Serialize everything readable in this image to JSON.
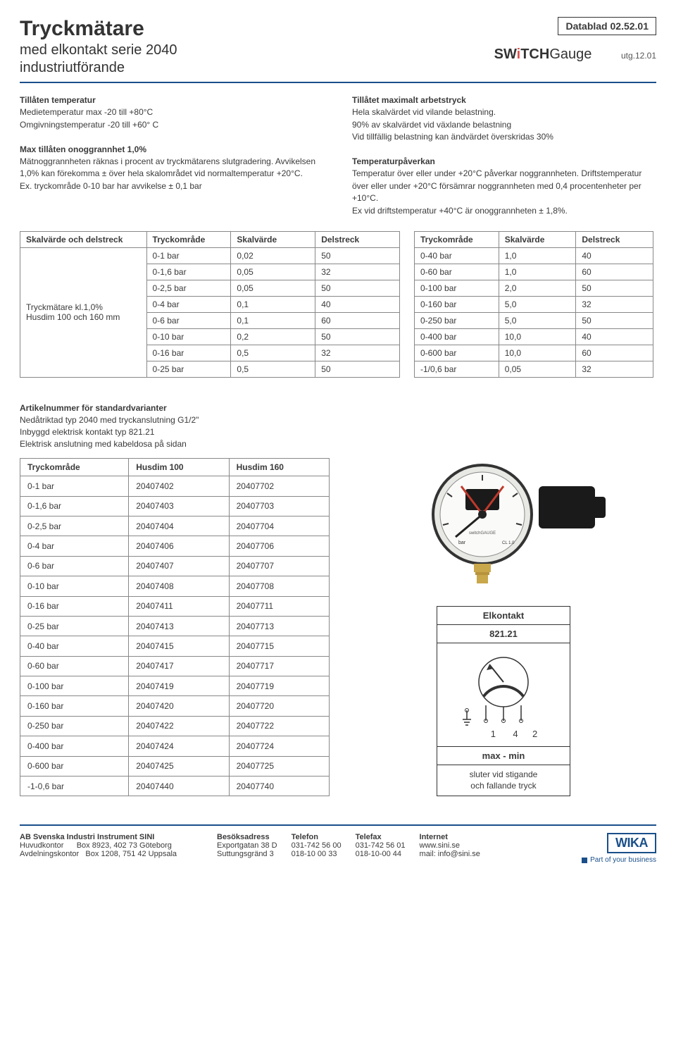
{
  "header": {
    "title": "Tryckmätare",
    "subtitle1": "med elkontakt  serie 2040",
    "subtitle2": "industriutförande",
    "datablad": "Datablad 02.52.01",
    "brand_prefix": "SW",
    "brand_i": "i",
    "brand_mid": "TCH",
    "brand_suffix": "Gauge",
    "utg": "utg.12.01"
  },
  "text_left": {
    "h1": "Tillåten temperatur",
    "p1": "Medietemperatur  max -20 till +80°C",
    "p2": "Omgivningstemperatur  -20 till +60° C",
    "h2": "Max tillåten onoggrannhet 1,0%",
    "p3": "Mätnoggrannheten räknas i procent av tryckmätarens slutgradering. Avvikelsen 1,0% kan förekomma ± över hela skalområdet vid normaltemperatur +20°C.",
    "p4": "Ex. tryckområde 0-10 bar har avvikelse ± 0,1 bar"
  },
  "text_right": {
    "h1": "Tillåtet maximalt arbetstryck",
    "p1": "Hela skalvärdet vid vilande belastning.",
    "p2": "90% av skalvärdet vid växlande belastning",
    "p3": "Vid tillfällig belastning kan ändvärdet överskridas 30%",
    "h2": "Temperaturpåverkan",
    "p4": "Temperatur över eller under +20°C påverkar noggrannheten. Driftstemperatur över eller under +20°C försämrar noggrannheten med 0,4 procentenheter per +10°C.",
    "p5": "Ex vid driftstemperatur +40°C är onoggrannheten ± 1,8%."
  },
  "table1": {
    "headers": [
      "Skalvärde och delstreck",
      "Tryckområde",
      "Skalvärde",
      "Delstreck"
    ],
    "rowspan_label_1": "Tryckmätare kl.1,0%",
    "rowspan_label_2": "Husdim 100 och 160 mm",
    "rows": [
      [
        "0-1 bar",
        "0,02",
        "50"
      ],
      [
        "0-1,6 bar",
        "0,05",
        "32"
      ],
      [
        "0-2,5 bar",
        "0,05",
        "50"
      ],
      [
        "0-4 bar",
        "0,1",
        "40"
      ],
      [
        "0-6 bar",
        "0,1",
        "60"
      ],
      [
        "0-10 bar",
        "0,2",
        "50"
      ],
      [
        "0-16 bar",
        "0,5",
        "32"
      ],
      [
        "0-25 bar",
        "0,5",
        "50"
      ]
    ]
  },
  "table2": {
    "headers": [
      "Tryckområde",
      "Skalvärde",
      "Delstreck"
    ],
    "rows": [
      [
        "0-40 bar",
        "1,0",
        "40"
      ],
      [
        "0-60 bar",
        "1,0",
        "60"
      ],
      [
        "0-100 bar",
        "2,0",
        "50"
      ],
      [
        "0-160 bar",
        "5,0",
        "32"
      ],
      [
        "0-250 bar",
        "5,0",
        "50"
      ],
      [
        "0-400 bar",
        "10,0",
        "40"
      ],
      [
        "0-600 bar",
        "10,0",
        "60"
      ],
      [
        "-1/0,6 bar",
        "0,05",
        "32"
      ]
    ]
  },
  "article_section": {
    "title": "Artikelnummer för standardvarianter",
    "line1": "Nedåtriktad typ 2040 med tryckanslutning G1/2\"",
    "line2": "Inbyggd elektrisk kontakt typ 821.21",
    "line3": "Elektrisk anslutning med kabeldosa på sidan"
  },
  "table3": {
    "headers": [
      "Tryckområde",
      "Husdim 100",
      "Husdim 160"
    ],
    "rows": [
      [
        "0-1 bar",
        "20407402",
        "20407702"
      ],
      [
        "0-1,6 bar",
        "20407403",
        "20407703"
      ],
      [
        "0-2,5 bar",
        "20407404",
        "20407704"
      ],
      [
        "0-4 bar",
        "20407406",
        "20407706"
      ],
      [
        "0-6 bar",
        "20407407",
        "20407707"
      ],
      [
        "0-10 bar",
        "20407408",
        "20407708"
      ],
      [
        "0-16 bar",
        "20407411",
        "20407711"
      ],
      [
        "0-25 bar",
        "20407413",
        "20407713"
      ],
      [
        "0-40 bar",
        "20407415",
        "20407715"
      ],
      [
        "0-60 bar",
        "20407417",
        "20407717"
      ],
      [
        "0-100 bar",
        "20407419",
        "20407719"
      ],
      [
        "0-160 bar",
        "20407420",
        "20407720"
      ],
      [
        "0-250 bar",
        "20407422",
        "20407722"
      ],
      [
        "0-400 bar",
        "20407424",
        "20407724"
      ],
      [
        "0-600 bar",
        "20407425",
        "20407725"
      ],
      [
        "-1-0,6 bar",
        "20407440",
        "20407740"
      ]
    ]
  },
  "elkontakt": {
    "title": "Elkontakt",
    "type": "821.21",
    "pins": "1 4 2",
    "label": "max - min",
    "desc1": "sluter vid stigande",
    "desc2": "och fallande tryck"
  },
  "footer": {
    "company": "AB Svenska Industri Instrument SINI",
    "l1a": "Huvudkontor",
    "l1b": "Box 8923, 402 73 Göteborg",
    "l2a": "Avdelningskontor",
    "l2b": "Box 1208, 751 42 Uppsala",
    "c2h": "Besöksadress",
    "c2a": "Exportgatan 38 D",
    "c2b": "Suttungsgränd 3",
    "c3h": "Telefon",
    "c3a": "031-742 56 00",
    "c3b": "018-10 00 33",
    "c4h": "Telefax",
    "c4a": "031-742 56 01",
    "c4b": "018-10-00 44",
    "c5h": "Internet",
    "c5a": "www.sini.se",
    "c5b": "mail: info@sini.se",
    "logo": "WIKA",
    "tagline": "Part of your business"
  },
  "gauge_svg": {
    "dial_fill": "#f2f2f0",
    "rim": "#333",
    "face": "#fafaf8",
    "needle": "#222",
    "red": "#c0392b",
    "brass": "#c9a74b",
    "black": "#1a1a1a"
  }
}
